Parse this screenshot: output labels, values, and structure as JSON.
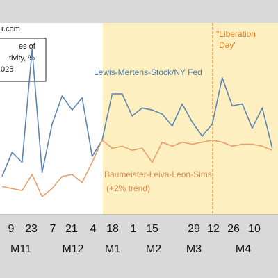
{
  "chart_data": {
    "type": "line",
    "source_fragment": "r.com",
    "legend_box_lines": [
      "es of",
      "tivity, %",
      "025"
    ],
    "x_ticks": [
      "9",
      "23",
      "7",
      "21",
      "4",
      "18",
      "1",
      "15",
      "29",
      "12",
      "26",
      "10"
    ],
    "months": [
      "M11",
      "M12",
      "M1",
      "M2",
      "M3",
      "M4"
    ],
    "annotation": [
      "\"Liberation",
      "Day\""
    ],
    "series": [
      {
        "name": "Lewis-Mertens-Stock/NY Fed",
        "color": "#5b84b1",
        "values": [
          0.95,
          1.55,
          1.3,
          4.1,
          1.05,
          2.25,
          2.95,
          2.6,
          2.9,
          1.45,
          1.85,
          3.0,
          3.0,
          2.45,
          2.65,
          2.6,
          2.5,
          2.2,
          2.75,
          2.3,
          1.95,
          2.25,
          3.4,
          2.7,
          2.75,
          2.15,
          2.65,
          1.65
        ]
      },
      {
        "name": "Baumeister-Leiva-Leon-Sims",
        "name_line2": "(+2% trend)",
        "color": "#e8a06a",
        "values": [
          0.7,
          0.65,
          0.6,
          1.0,
          0.45,
          0.65,
          0.95,
          1.0,
          0.8,
          1.3,
          1.85,
          1.65,
          1.7,
          1.6,
          1.65,
          1.3,
          1.8,
          1.7,
          1.8,
          1.75,
          1.8,
          1.85,
          1.8,
          1.7,
          1.75,
          1.75,
          1.7,
          1.6
        ]
      }
    ],
    "shaded_region_start_index": 9,
    "vertical_line_index": 20.3
  }
}
